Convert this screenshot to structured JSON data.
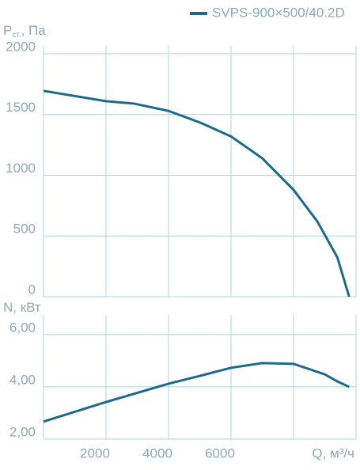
{
  "chart_data": [
    {
      "type": "line",
      "ylabel": [
        "P",
        "ст.",
        ", Па"
      ],
      "series": [
        {
          "name": "SVPS-900×500/40.2D",
          "color": "#1b6a8c",
          "x": [
            0,
            2000,
            2900,
            4000,
            5000,
            6000,
            7000,
            8000,
            8760,
            9400,
            9780
          ],
          "values": [
            1695,
            1610,
            1590,
            1530,
            1435,
            1320,
            1140,
            880,
            620,
            325,
            0
          ]
        }
      ],
      "xlim": [
        0,
        10000
      ],
      "xgrid": [
        2000,
        4000,
        6000,
        8000
      ],
      "ylim": [
        0,
        2000
      ],
      "yticks": [
        0,
        500,
        1000,
        1500,
        2000
      ],
      "grid": true
    },
    {
      "type": "line",
      "ylabel": [
        "N, кВт"
      ],
      "xlabel": "Q, м³/ч",
      "series": [
        {
          "color": "#1b6a8c",
          "x": [
            0,
            2000,
            4000,
            5000,
            6000,
            7000,
            8000,
            9000,
            9400,
            9780
          ],
          "values": [
            2.67,
            3.42,
            4.12,
            4.42,
            4.73,
            4.91,
            4.88,
            4.48,
            4.21,
            4.0
          ]
        }
      ],
      "xlim": [
        0,
        10000
      ],
      "xticks": [
        2000,
        4000,
        6000
      ],
      "xgrid": [
        2000,
        4000,
        6000,
        8000
      ],
      "ylim": [
        2,
        6.45
      ],
      "yticks": [
        {
          "value": 2,
          "label": "2,00"
        },
        {
          "value": 4,
          "label": "4,00"
        },
        {
          "value": 6,
          "label": "6,00"
        }
      ],
      "grid": true
    }
  ]
}
